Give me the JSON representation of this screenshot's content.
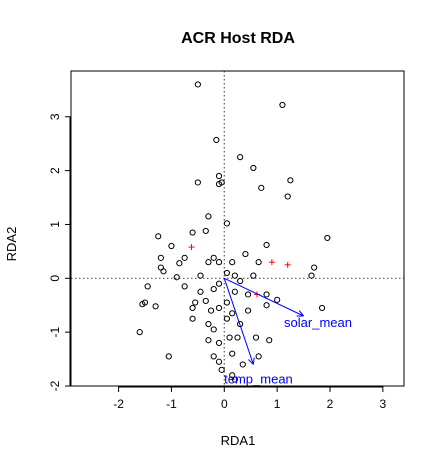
{
  "chart_data": {
    "type": "scatter",
    "title": "ACR Host RDA",
    "xlabel": "RDA1",
    "ylabel": "RDA2",
    "xlim": [
      -2.9,
      3.4
    ],
    "ylim": [
      -2.0,
      3.85
    ],
    "x_ticks": [
      "-2",
      "-1",
      "0",
      "1",
      "2",
      "3"
    ],
    "y_ticks": [
      "-2",
      "-1",
      "0",
      "1",
      "2",
      "3"
    ],
    "grid": false,
    "reference_lines": {
      "x": 0,
      "y": 0,
      "style": "dotted"
    },
    "site_points": [
      [
        -0.5,
        3.6
      ],
      [
        1.1,
        3.22
      ],
      [
        -0.15,
        2.57
      ],
      [
        0.3,
        2.25
      ],
      [
        0.55,
        2.05
      ],
      [
        1.25,
        1.82
      ],
      [
        1.2,
        1.52
      ],
      [
        -0.5,
        1.78
      ],
      [
        -0.1,
        1.9
      ],
      [
        -0.1,
        1.75
      ],
      [
        -0.05,
        1.78
      ],
      [
        0.7,
        1.68
      ],
      [
        0.05,
        1.02
      ],
      [
        -0.3,
        1.15
      ],
      [
        -0.35,
        0.88
      ],
      [
        -1.25,
        0.78
      ],
      [
        -0.6,
        0.85
      ],
      [
        -1.0,
        0.6
      ],
      [
        0.8,
        0.62
      ],
      [
        1.95,
        0.75
      ],
      [
        -1.2,
        0.38
      ],
      [
        -0.75,
        0.38
      ],
      [
        -0.2,
        0.38
      ],
      [
        0.15,
        0.3
      ],
      [
        0.4,
        0.45
      ],
      [
        -0.3,
        0.3
      ],
      [
        -0.1,
        0.3
      ],
      [
        0.65,
        0.3
      ],
      [
        -0.85,
        0.28
      ],
      [
        -1.2,
        0.2
      ],
      [
        -1.15,
        0.13
      ],
      [
        -0.45,
        0.05
      ],
      [
        0.05,
        0.1
      ],
      [
        0.3,
        -0.05
      ],
      [
        0.55,
        0.05
      ],
      [
        1.7,
        0.2
      ],
      [
        1.65,
        0.05
      ],
      [
        -0.9,
        0.02
      ],
      [
        -0.1,
        -0.1
      ],
      [
        0.2,
        0.05
      ],
      [
        -1.45,
        -0.15
      ],
      [
        -0.75,
        -0.15
      ],
      [
        -0.45,
        -0.25
      ],
      [
        -0.2,
        -0.2
      ],
      [
        0.2,
        -0.25
      ],
      [
        0.45,
        -0.3
      ],
      [
        0.8,
        -0.3
      ],
      [
        1.0,
        -0.4
      ],
      [
        -1.55,
        -0.48
      ],
      [
        -1.5,
        -0.45
      ],
      [
        -1.3,
        -0.52
      ],
      [
        -0.55,
        -0.45
      ],
      [
        -0.35,
        -0.42
      ],
      [
        -0.6,
        -0.55
      ],
      [
        -0.25,
        -0.6
      ],
      [
        -0.1,
        -0.55
      ],
      [
        0.05,
        -0.45
      ],
      [
        0.15,
        -0.65
      ],
      [
        0.45,
        -0.6
      ],
      [
        0.8,
        -0.5
      ],
      [
        1.85,
        -0.55
      ],
      [
        -0.6,
        -0.75
      ],
      [
        -0.3,
        -0.85
      ],
      [
        0.05,
        -0.75
      ],
      [
        0.3,
        -0.85
      ],
      [
        -0.2,
        -0.95
      ],
      [
        0.1,
        -1.1
      ],
      [
        -1.6,
        -1.0
      ],
      [
        -0.3,
        -1.15
      ],
      [
        -0.1,
        -1.2
      ],
      [
        0.25,
        -1.1
      ],
      [
        0.6,
        -1.1
      ],
      [
        0.85,
        -1.15
      ],
      [
        -1.05,
        -1.45
      ],
      [
        -0.2,
        -1.45
      ],
      [
        0.15,
        -1.4
      ],
      [
        0.65,
        -1.45
      ],
      [
        -0.1,
        -1.55
      ],
      [
        0.35,
        -1.6
      ],
      [
        -0.05,
        -1.7
      ],
      [
        0.15,
        -1.8
      ],
      [
        0.2,
        -1.88
      ]
    ],
    "species_points": [
      [
        -0.62,
        0.58
      ],
      [
        0.9,
        0.3
      ],
      [
        1.2,
        0.25
      ],
      [
        0.62,
        -0.3
      ]
    ],
    "biplot_arrows": [
      {
        "name": "solar_mean",
        "x": 1.5,
        "y": -0.7
      },
      {
        "name": "temp_mean",
        "x": 0.55,
        "y": -1.6
      }
    ],
    "colors": {
      "site": "#000000",
      "species": "#ff0000",
      "arrow": "#0000ff",
      "reference": "#555555"
    }
  }
}
